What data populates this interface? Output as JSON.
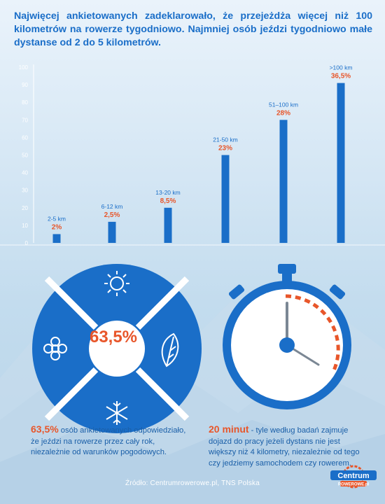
{
  "headline": "Najwięcej ankietowanych zadeklarowało, że przejeżdża więcej niż 100 kilometrów na rowerze tygodniowo. Najmniej osób jeździ tygodniowo małe dystanse od 2 do 5 kilometrów.",
  "colors": {
    "primary": "#1a6ec8",
    "accent": "#e8562a",
    "white": "#ffffff"
  },
  "chart_data": {
    "type": "bar",
    "title": "",
    "xlabel": "",
    "ylabel": "",
    "ylim": [
      0,
      100
    ],
    "yticks": [
      0,
      10,
      20,
      30,
      40,
      50,
      60,
      70,
      80,
      90,
      100
    ],
    "categories": [
      "2-5 km",
      "6-12 km",
      "13-20 km",
      "21-50 km",
      "51–100 km",
      ">100 km"
    ],
    "values": [
      2,
      2.5,
      8.5,
      23,
      28,
      36.5
    ],
    "value_labels": [
      "2%",
      "2,5%",
      "8,5%",
      "23%",
      "28%",
      "36,5%"
    ],
    "bar_heights_pct": [
      5,
      12,
      20,
      50,
      70,
      91
    ],
    "grid": false
  },
  "all_weather": {
    "percent": "63,5%",
    "icons": [
      "sun-icon",
      "leaf-icon",
      "snowflake-icon",
      "flower-icon"
    ],
    "caption_highlight": "63,5%",
    "caption_text": " osób ankietowanych odpowiedziało, że jeździ na rowerze przez cały rok, niezależnie od warunków pogodowych."
  },
  "commute": {
    "caption_highlight": "20 minut",
    "caption_text": " - tyle według badań zajmuje dojazd do pracy jeżeli dystans nie jest większy niż 4 kilometry, niezależnie od tego czy jedziemy samochodem czy rowerem."
  },
  "source": "Źródło: Centrumrowerowe.pl, TNS Polska",
  "logo": {
    "name": "Centrum",
    "sub": "ROWEROWE.pl"
  }
}
